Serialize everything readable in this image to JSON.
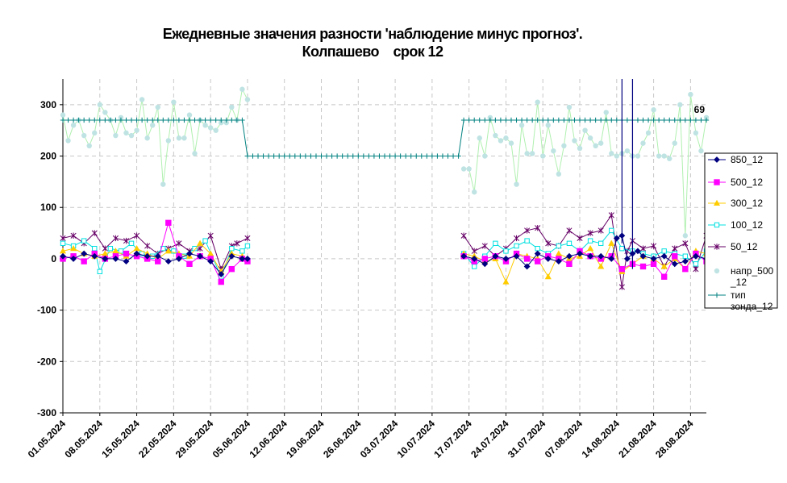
{
  "chart_data": {
    "type": "line",
    "title": "Ежедневные значения разности 'наблюдение минус прогноз'.",
    "subtitle": "Колпашево    срок 12",
    "xlabel": "",
    "ylabel": "",
    "ylim": [
      -300,
      350
    ],
    "yticks": [
      "-300",
      "-200",
      "-100",
      "0",
      "100",
      "200",
      "300"
    ],
    "xlim": [
      "2024-05-01",
      "2024-08-31"
    ],
    "xticks": [
      "01.05.2024",
      "08.05.2024",
      "15.05.2024",
      "22.05.2024",
      "29.05.2024",
      "05.06.2024",
      "12.06.2024",
      "19.06.2024",
      "26.06.2024",
      "03.07.2024",
      "10.07.2024",
      "17.07.2024",
      "24.07.2024",
      "31.07.2024",
      "07.08.2024",
      "14.08.2024",
      "21.08.2024",
      "28.08.2024"
    ],
    "grid": true,
    "legend_position": "right",
    "data_label": "69",
    "series": [
      {
        "name": "850_12",
        "color": "#000080",
        "marker": "diamond",
        "x": [
          "2024-05-01",
          "2024-05-03",
          "2024-05-05",
          "2024-05-07",
          "2024-05-09",
          "2024-05-11",
          "2024-05-13",
          "2024-05-15",
          "2024-05-17",
          "2024-05-19",
          "2024-05-21",
          "2024-05-23",
          "2024-05-25",
          "2024-05-27",
          "2024-05-29",
          "2024-05-31",
          "2024-06-02",
          "2024-06-04",
          "2024-06-05",
          "2024-07-16",
          "2024-07-18",
          "2024-07-20",
          "2024-07-22",
          "2024-07-24",
          "2024-07-26",
          "2024-07-28",
          "2024-07-30",
          "2024-08-01",
          "2024-08-03",
          "2024-08-05",
          "2024-08-07",
          "2024-08-09",
          "2024-08-11",
          "2024-08-13",
          "2024-08-14",
          "2024-08-15",
          "2024-08-16",
          "2024-08-17",
          "2024-08-18",
          "2024-08-19",
          "2024-08-21",
          "2024-08-23",
          "2024-08-25",
          "2024-08-27",
          "2024-08-29",
          "2024-08-31"
        ],
        "y": [
          5,
          0,
          10,
          5,
          0,
          0,
          -5,
          10,
          5,
          5,
          -5,
          0,
          10,
          5,
          -5,
          -30,
          5,
          0,
          0,
          5,
          0,
          -10,
          5,
          0,
          5,
          -15,
          10,
          0,
          -5,
          5,
          10,
          5,
          5,
          0,
          40,
          45,
          0,
          10,
          15,
          5,
          0,
          5,
          -10,
          -5,
          5,
          0
        ]
      },
      {
        "name": "500_12",
        "color": "#ff00ff",
        "marker": "square",
        "x": [
          "2024-05-01",
          "2024-05-03",
          "2024-05-05",
          "2024-05-07",
          "2024-05-09",
          "2024-05-11",
          "2024-05-13",
          "2024-05-15",
          "2024-05-17",
          "2024-05-19",
          "2024-05-21",
          "2024-05-23",
          "2024-05-25",
          "2024-05-27",
          "2024-05-29",
          "2024-05-31",
          "2024-06-02",
          "2024-06-04",
          "2024-06-05",
          "2024-07-16",
          "2024-07-18",
          "2024-07-20",
          "2024-07-22",
          "2024-07-24",
          "2024-07-26",
          "2024-07-28",
          "2024-07-30",
          "2024-08-01",
          "2024-08-03",
          "2024-08-05",
          "2024-08-07",
          "2024-08-09",
          "2024-08-11",
          "2024-08-13",
          "2024-08-15",
          "2024-08-17",
          "2024-08-19",
          "2024-08-21",
          "2024-08-23",
          "2024-08-25",
          "2024-08-27",
          "2024-08-29",
          "2024-08-31"
        ],
        "y": [
          0,
          5,
          -5,
          10,
          0,
          5,
          10,
          5,
          0,
          -5,
          70,
          5,
          -10,
          5,
          0,
          -45,
          -20,
          0,
          -5,
          5,
          -5,
          0,
          5,
          -5,
          10,
          0,
          -5,
          5,
          0,
          -10,
          15,
          5,
          0,
          5,
          -20,
          -10,
          -15,
          -10,
          -35,
          5,
          -20,
          10,
          -5
        ]
      },
      {
        "name": "300_12",
        "color": "#ffcc00",
        "marker": "triangle",
        "x": [
          "2024-05-01",
          "2024-05-03",
          "2024-05-05",
          "2024-05-07",
          "2024-05-09",
          "2024-05-11",
          "2024-05-13",
          "2024-05-15",
          "2024-05-17",
          "2024-05-19",
          "2024-05-21",
          "2024-05-23",
          "2024-05-25",
          "2024-05-27",
          "2024-05-29",
          "2024-05-31",
          "2024-06-02",
          "2024-06-04",
          "2024-07-16",
          "2024-07-18",
          "2024-07-20",
          "2024-07-22",
          "2024-07-24",
          "2024-07-26",
          "2024-07-28",
          "2024-07-30",
          "2024-08-01",
          "2024-08-03",
          "2024-08-05",
          "2024-08-07",
          "2024-08-09",
          "2024-08-11",
          "2024-08-13",
          "2024-08-15",
          "2024-08-17",
          "2024-08-19",
          "2024-08-21",
          "2024-08-23",
          "2024-08-25",
          "2024-08-27",
          "2024-08-29",
          "2024-08-31"
        ],
        "y": [
          15,
          20,
          10,
          5,
          10,
          15,
          5,
          20,
          10,
          0,
          15,
          10,
          5,
          30,
          10,
          -25,
          10,
          5,
          10,
          5,
          -5,
          0,
          -45,
          10,
          5,
          0,
          -35,
          10,
          0,
          5,
          20,
          -15,
          30,
          -25,
          -10,
          5,
          0,
          -15,
          0,
          -20,
          15,
          10
        ]
      },
      {
        "name": "100_12",
        "color": "#00e0e0",
        "marker": "square-open",
        "x": [
          "2024-05-01",
          "2024-05-03",
          "2024-05-05",
          "2024-05-07",
          "2024-05-08",
          "2024-05-10",
          "2024-05-12",
          "2024-05-14",
          "2024-05-16",
          "2024-05-18",
          "2024-05-20",
          "2024-05-22",
          "2024-05-24",
          "2024-05-26",
          "2024-05-28",
          "2024-05-31",
          "2024-06-02",
          "2024-06-04",
          "2024-06-05",
          "2024-07-16",
          "2024-07-18",
          "2024-07-20",
          "2024-07-22",
          "2024-07-24",
          "2024-07-26",
          "2024-07-28",
          "2024-07-30",
          "2024-08-01",
          "2024-08-03",
          "2024-08-05",
          "2024-08-07",
          "2024-08-09",
          "2024-08-11",
          "2024-08-13",
          "2024-08-15",
          "2024-08-17",
          "2024-08-19",
          "2024-08-21",
          "2024-08-23",
          "2024-08-25",
          "2024-08-27",
          "2024-08-29",
          "2024-08-31"
        ],
        "y": [
          30,
          25,
          35,
          20,
          -25,
          20,
          15,
          30,
          10,
          5,
          20,
          15,
          5,
          20,
          35,
          -35,
          20,
          15,
          25,
          10,
          -15,
          5,
          30,
          15,
          25,
          35,
          20,
          10,
          25,
          30,
          15,
          35,
          30,
          55,
          20,
          15,
          10,
          5,
          15,
          10,
          5,
          -10,
          15
        ]
      },
      {
        "name": "50_12",
        "color": "#660066",
        "marker": "star",
        "x": [
          "2024-05-01",
          "2024-05-03",
          "2024-05-05",
          "2024-05-07",
          "2024-05-09",
          "2024-05-11",
          "2024-05-13",
          "2024-05-15",
          "2024-05-17",
          "2024-05-19",
          "2024-05-21",
          "2024-05-23",
          "2024-05-25",
          "2024-05-27",
          "2024-05-29",
          "2024-05-31",
          "2024-06-02",
          "2024-06-03",
          "2024-06-05",
          "2024-07-16",
          "2024-07-18",
          "2024-07-20",
          "2024-07-22",
          "2024-07-24",
          "2024-07-26",
          "2024-07-28",
          "2024-07-30",
          "2024-08-01",
          "2024-08-03",
          "2024-08-05",
          "2024-08-07",
          "2024-08-09",
          "2024-08-11",
          "2024-08-13",
          "2024-08-15",
          "2024-08-16",
          "2024-08-17",
          "2024-08-19",
          "2024-08-21",
          "2024-08-23",
          "2024-08-25",
          "2024-08-27",
          "2024-08-29",
          "2024-08-31"
        ],
        "y": [
          40,
          45,
          30,
          50,
          20,
          40,
          35,
          45,
          25,
          10,
          20,
          30,
          15,
          20,
          45,
          -20,
          25,
          30,
          40,
          45,
          15,
          25,
          5,
          20,
          40,
          55,
          60,
          30,
          25,
          55,
          40,
          50,
          55,
          85,
          -55,
          15,
          35,
          20,
          25,
          -15,
          20,
          30,
          -20,
          45
        ]
      },
      {
        "name": "напр_500_12",
        "color": "#bfe3e3",
        "line_color": "#b0f0b0",
        "marker": "circle",
        "x": [
          "2024-05-01",
          "2024-05-02",
          "2024-05-03",
          "2024-05-04",
          "2024-05-05",
          "2024-05-06",
          "2024-05-07",
          "2024-05-08",
          "2024-05-09",
          "2024-05-10",
          "2024-05-11",
          "2024-05-12",
          "2024-05-13",
          "2024-05-14",
          "2024-05-15",
          "2024-05-16",
          "2024-05-17",
          "2024-05-18",
          "2024-05-19",
          "2024-05-20",
          "2024-05-21",
          "2024-05-22",
          "2024-05-23",
          "2024-05-24",
          "2024-05-25",
          "2024-05-26",
          "2024-05-27",
          "2024-05-28",
          "2024-05-29",
          "2024-05-30",
          "2024-05-31",
          "2024-06-01",
          "2024-06-02",
          "2024-06-03",
          "2024-06-04",
          "2024-06-05",
          "2024-07-16",
          "2024-07-17",
          "2024-07-18",
          "2024-07-19",
          "2024-07-20",
          "2024-07-21",
          "2024-07-22",
          "2024-07-23",
          "2024-07-24",
          "2024-07-25",
          "2024-07-26",
          "2024-07-27",
          "2024-07-28",
          "2024-07-29",
          "2024-07-30",
          "2024-07-31",
          "2024-08-01",
          "2024-08-02",
          "2024-08-03",
          "2024-08-04",
          "2024-08-05",
          "2024-08-06",
          "2024-08-07",
          "2024-08-08",
          "2024-08-09",
          "2024-08-10",
          "2024-08-11",
          "2024-08-12",
          "2024-08-13",
          "2024-08-14",
          "2024-08-15",
          "2024-08-16",
          "2024-08-17",
          "2024-08-18",
          "2024-08-19",
          "2024-08-20",
          "2024-08-21",
          "2024-08-22",
          "2024-08-23",
          "2024-08-24",
          "2024-08-25",
          "2024-08-26",
          "2024-08-27",
          "2024-08-28",
          "2024-08-29",
          "2024-08-30",
          "2024-08-31"
        ],
        "y": [
          280,
          230,
          260,
          270,
          240,
          220,
          245,
          300,
          285,
          270,
          240,
          275,
          245,
          240,
          250,
          310,
          235,
          260,
          295,
          145,
          230,
          305,
          235,
          235,
          280,
          205,
          270,
          260,
          255,
          250,
          265,
          265,
          295,
          270,
          330,
          310,
          175,
          175,
          130,
          235,
          200,
          275,
          240,
          230,
          235,
          225,
          145,
          260,
          205,
          205,
          305,
          200,
          260,
          210,
          165,
          220,
          295,
          230,
          215,
          250,
          235,
          220,
          225,
          285,
          205,
          200,
          205,
          210,
          200,
          200,
          225,
          245,
          290,
          200,
          200,
          195,
          225,
          300,
          45,
          320,
          245,
          210,
          275
        ]
      },
      {
        "name": "тип зонда_12",
        "color": "#008080",
        "marker": "plus",
        "x": [
          "2024-05-01",
          "2024-06-04",
          "2024-06-05",
          "2024-07-15",
          "2024-07-16",
          "2024-08-31"
        ],
        "y": [
          270,
          270,
          200,
          200,
          270,
          270
        ]
      }
    ],
    "spikes": [
      {
        "x": "2024-08-15",
        "y_from": 30,
        "y_to": 350,
        "color": "#000080"
      },
      {
        "x": "2024-08-17",
        "y_from": 350,
        "y_to": -20,
        "color": "#000080"
      }
    ]
  }
}
